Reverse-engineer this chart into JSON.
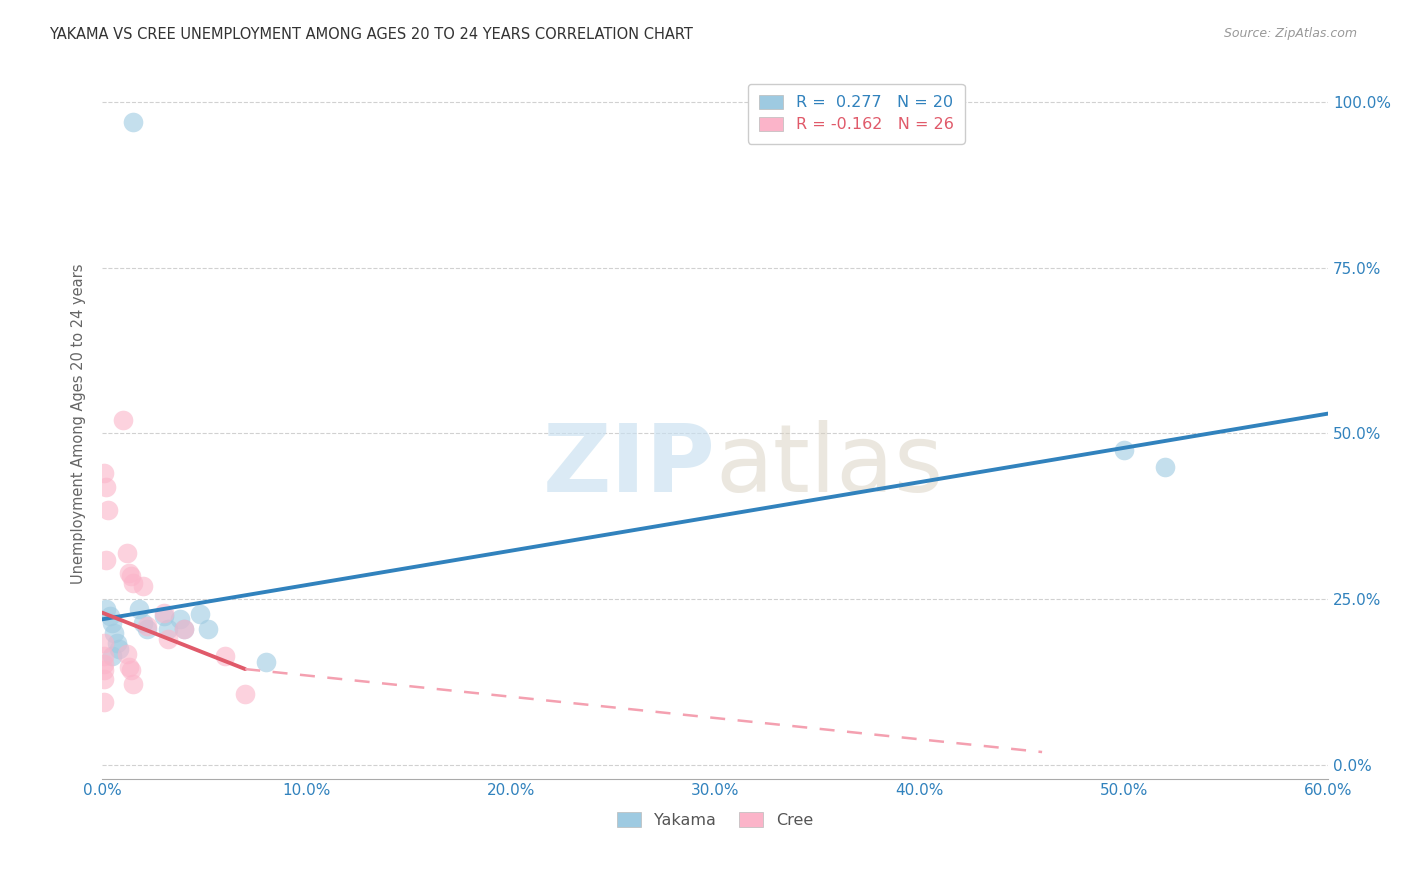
{
  "title": "YAKAMA VS CREE UNEMPLOYMENT AMONG AGES 20 TO 24 YEARS CORRELATION CHART",
  "source": "Source: ZipAtlas.com",
  "xlabel_ticks": [
    "0.0%",
    "10.0%",
    "20.0%",
    "30.0%",
    "40.0%",
    "50.0%",
    "60.0%"
  ],
  "ylabel_ticks": [
    "0.0%",
    "25.0%",
    "50.0%",
    "75.0%",
    "100.0%"
  ],
  "xlim": [
    0.0,
    0.6
  ],
  "ylim": [
    -0.02,
    1.05
  ],
  "watermark_zip": "ZIP",
  "watermark_atlas": "atlas",
  "legend_yakama": "R =  0.277   N = 20",
  "legend_cree": "R = -0.162   N = 26",
  "yakama_color": "#9ecae1",
  "cree_color": "#fbb4c9",
  "yakama_line_color": "#3182bd",
  "cree_line_solid_color": "#e05a6a",
  "cree_line_dashed_color": "#f4a0b0",
  "yakama_points": [
    [
      0.015,
      0.97
    ],
    [
      0.002,
      0.235
    ],
    [
      0.004,
      0.225
    ],
    [
      0.005,
      0.215
    ],
    [
      0.006,
      0.2
    ],
    [
      0.007,
      0.185
    ],
    [
      0.008,
      0.175
    ],
    [
      0.005,
      0.165
    ],
    [
      0.018,
      0.235
    ],
    [
      0.02,
      0.215
    ],
    [
      0.022,
      0.205
    ],
    [
      0.03,
      0.225
    ],
    [
      0.032,
      0.205
    ],
    [
      0.038,
      0.22
    ],
    [
      0.04,
      0.205
    ],
    [
      0.048,
      0.228
    ],
    [
      0.052,
      0.205
    ],
    [
      0.08,
      0.155
    ],
    [
      0.5,
      0.475
    ],
    [
      0.52,
      0.45
    ]
  ],
  "cree_points": [
    [
      0.001,
      0.44
    ],
    [
      0.002,
      0.42
    ],
    [
      0.003,
      0.385
    ],
    [
      0.002,
      0.31
    ],
    [
      0.001,
      0.185
    ],
    [
      0.001,
      0.165
    ],
    [
      0.001,
      0.153
    ],
    [
      0.001,
      0.143
    ],
    [
      0.001,
      0.13
    ],
    [
      0.001,
      0.095
    ],
    [
      0.01,
      0.52
    ],
    [
      0.012,
      0.32
    ],
    [
      0.013,
      0.29
    ],
    [
      0.014,
      0.285
    ],
    [
      0.015,
      0.275
    ],
    [
      0.012,
      0.168
    ],
    [
      0.013,
      0.148
    ],
    [
      0.014,
      0.143
    ],
    [
      0.015,
      0.122
    ],
    [
      0.02,
      0.27
    ],
    [
      0.022,
      0.21
    ],
    [
      0.03,
      0.23
    ],
    [
      0.032,
      0.19
    ],
    [
      0.04,
      0.205
    ],
    [
      0.06,
      0.165
    ],
    [
      0.07,
      0.108
    ]
  ],
  "yakama_trendline": [
    [
      0.0,
      0.22
    ],
    [
      0.6,
      0.53
    ]
  ],
  "cree_trendline_solid": [
    [
      0.0,
      0.23
    ],
    [
      0.07,
      0.145
    ]
  ],
  "cree_trendline_dashed": [
    [
      0.07,
      0.145
    ],
    [
      0.46,
      0.02
    ]
  ]
}
